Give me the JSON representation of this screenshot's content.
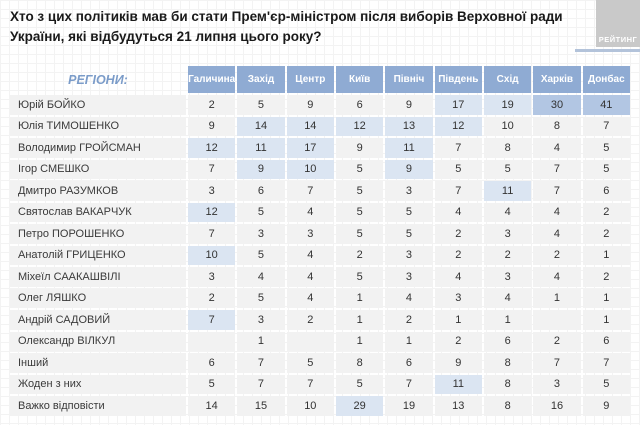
{
  "title": "Хто з цих політиків мав би стати Прем'єр-міністром після виборів Верховної ради України, які відбудуться 21 липня цього року?",
  "logo": {
    "text": "РЕЙТИНГ"
  },
  "table": {
    "corner_label": "РЕГІОНИ:"
  },
  "colors": {
    "header_bg": "#8fabd3",
    "row_bg": "#f2f2f2",
    "highlight_light": "#dbe5f2",
    "highlight_strong": "#b2c6e3",
    "regions_label_text": "#7b9cc9",
    "logo_bg": "#c9c9c9",
    "logo_text": "#ffffff"
  },
  "chart_data": {
    "type": "table",
    "title": "Хто з цих політиків мав би стати Прем'єр-міністром після виборів Верховної ради України, які відбудуться 21 липня цього року?",
    "categories": [
      "Галичина",
      "Захід",
      "Центр",
      "Київ",
      "Північ",
      "Південь",
      "Схід",
      "Харків",
      "Донбас"
    ],
    "series": [
      {
        "name": "Юрій БОЙКО",
        "values": [
          2,
          5,
          9,
          6,
          9,
          17,
          19,
          30,
          41
        ],
        "highlights": [
          0,
          0,
          0,
          0,
          0,
          1,
          1,
          2,
          2
        ]
      },
      {
        "name": "Юлія ТИМОШЕНКО",
        "values": [
          9,
          14,
          14,
          12,
          13,
          12,
          10,
          8,
          7
        ],
        "highlights": [
          0,
          1,
          1,
          1,
          1,
          1,
          0,
          0,
          0
        ]
      },
      {
        "name": "Володимир ГРОЙСМАН",
        "values": [
          12,
          11,
          17,
          9,
          11,
          7,
          8,
          4,
          5
        ],
        "highlights": [
          1,
          1,
          1,
          0,
          1,
          0,
          0,
          0,
          0
        ]
      },
      {
        "name": "Ігор СМЕШКО",
        "values": [
          7,
          9,
          10,
          5,
          9,
          5,
          5,
          7,
          5
        ],
        "highlights": [
          0,
          1,
          1,
          0,
          1,
          0,
          0,
          0,
          0
        ]
      },
      {
        "name": "Дмитро РАЗУМКОВ",
        "values": [
          3,
          6,
          7,
          5,
          3,
          7,
          11,
          7,
          6
        ],
        "highlights": [
          0,
          0,
          0,
          0,
          0,
          0,
          1,
          0,
          0
        ]
      },
      {
        "name": "Святослав ВАКАРЧУК",
        "values": [
          12,
          5,
          4,
          5,
          5,
          4,
          4,
          4,
          2
        ],
        "highlights": [
          1,
          0,
          0,
          0,
          0,
          0,
          0,
          0,
          0
        ]
      },
      {
        "name": "Петро ПОРОШЕНКО",
        "values": [
          7,
          3,
          3,
          5,
          5,
          2,
          3,
          4,
          2
        ],
        "highlights": [
          0,
          0,
          0,
          0,
          0,
          0,
          0,
          0,
          0
        ]
      },
      {
        "name": "Анатолій ГРИЦЕНКО",
        "values": [
          10,
          5,
          4,
          2,
          3,
          2,
          2,
          2,
          1
        ],
        "highlights": [
          1,
          0,
          0,
          0,
          0,
          0,
          0,
          0,
          0
        ]
      },
      {
        "name": "Міхеїл СААКАШВІЛІ",
        "values": [
          3,
          4,
          4,
          5,
          3,
          4,
          3,
          4,
          2
        ],
        "highlights": [
          0,
          0,
          0,
          0,
          0,
          0,
          0,
          0,
          0
        ]
      },
      {
        "name": "Олег ЛЯШКО",
        "values": [
          2,
          5,
          4,
          1,
          4,
          3,
          4,
          1,
          1
        ],
        "highlights": [
          0,
          0,
          0,
          0,
          0,
          0,
          0,
          0,
          0
        ]
      },
      {
        "name": "Андрій САДОВИЙ",
        "values": [
          7,
          3,
          2,
          1,
          2,
          1,
          1,
          null,
          1
        ],
        "highlights": [
          1,
          0,
          0,
          0,
          0,
          0,
          0,
          0,
          0
        ]
      },
      {
        "name": "Олександр ВІЛКУЛ",
        "values": [
          null,
          1,
          null,
          1,
          1,
          2,
          6,
          2,
          6
        ],
        "highlights": [
          0,
          0,
          0,
          0,
          0,
          0,
          0,
          0,
          0
        ]
      },
      {
        "name": "Інший",
        "values": [
          6,
          7,
          5,
          8,
          6,
          9,
          8,
          7,
          7
        ],
        "highlights": [
          0,
          0,
          0,
          0,
          0,
          0,
          0,
          0,
          0
        ]
      },
      {
        "name": "Жоден з них",
        "values": [
          5,
          7,
          7,
          5,
          7,
          11,
          8,
          3,
          5
        ],
        "highlights": [
          0,
          0,
          0,
          0,
          0,
          1,
          0,
          0,
          0
        ]
      },
      {
        "name": "Важко відповісти",
        "values": [
          14,
          15,
          10,
          29,
          19,
          13,
          8,
          16,
          9
        ],
        "highlights": [
          0,
          0,
          0,
          1,
          0,
          0,
          0,
          0,
          0
        ]
      }
    ],
    "legend_note": "highlights: 0 = plain grey cell, 1 = light blue emphasis, 2 = strong blue emphasis"
  }
}
